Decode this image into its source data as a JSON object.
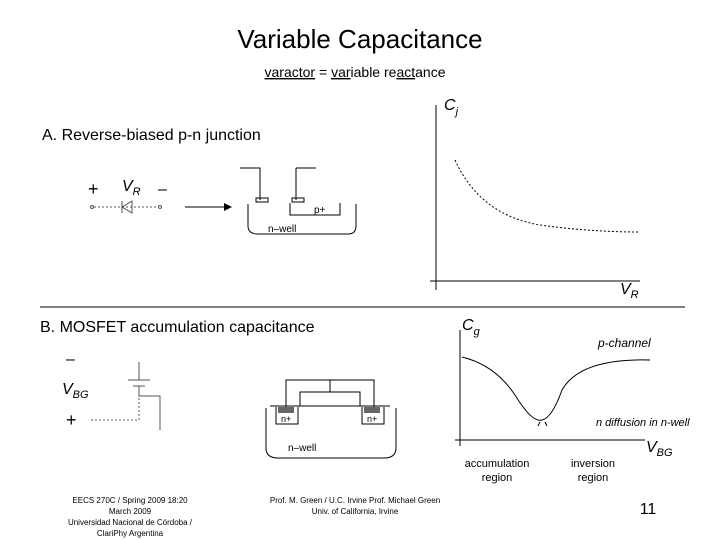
{
  "title": "Variable Capacitance",
  "subtitle": [
    "varactor",
    " = ",
    "var",
    "iable re",
    "act",
    "ance"
  ],
  "section_a": {
    "heading": "A.  Reverse-biased p-n junction",
    "circuit": {
      "plus": "+",
      "voltage": "V",
      "voltage_sub": "R",
      "minus": "–"
    },
    "device": {
      "diffusion": "p+",
      "well": "n–well"
    },
    "graph": {
      "y_label": "C",
      "y_label_sub": "j",
      "x_label": "V",
      "x_label_sub": "R"
    }
  },
  "section_b": {
    "heading": "B.  MOSFET accumulation capacitance",
    "circuit": {
      "minus": "–",
      "voltage": "V",
      "voltage_sub": "BG",
      "plus": "+"
    },
    "device": {
      "diffusions": [
        "n+",
        "n+"
      ],
      "well": "n–well"
    },
    "graph": {
      "y_label": "C",
      "y_label_sub": "g",
      "x_label": "V",
      "x_label_sub": "BG",
      "annotations": [
        "p-channel",
        "n diffusion in n-well"
      ],
      "regions": [
        [
          "accumulation",
          "region"
        ],
        [
          "inversion",
          "region"
        ]
      ]
    }
  },
  "footer": {
    "left": [
      "EECS 270C / Spring 2009 18:20",
      "March 2009",
      "Universidad Nacional de Córdoba /",
      "ClariPhy Argentina"
    ],
    "center": [
      "Prof. M. Green / U.C. Irvine Prof. Michael Green",
      "Univ. of California, Irvine"
    ],
    "page": "11"
  }
}
